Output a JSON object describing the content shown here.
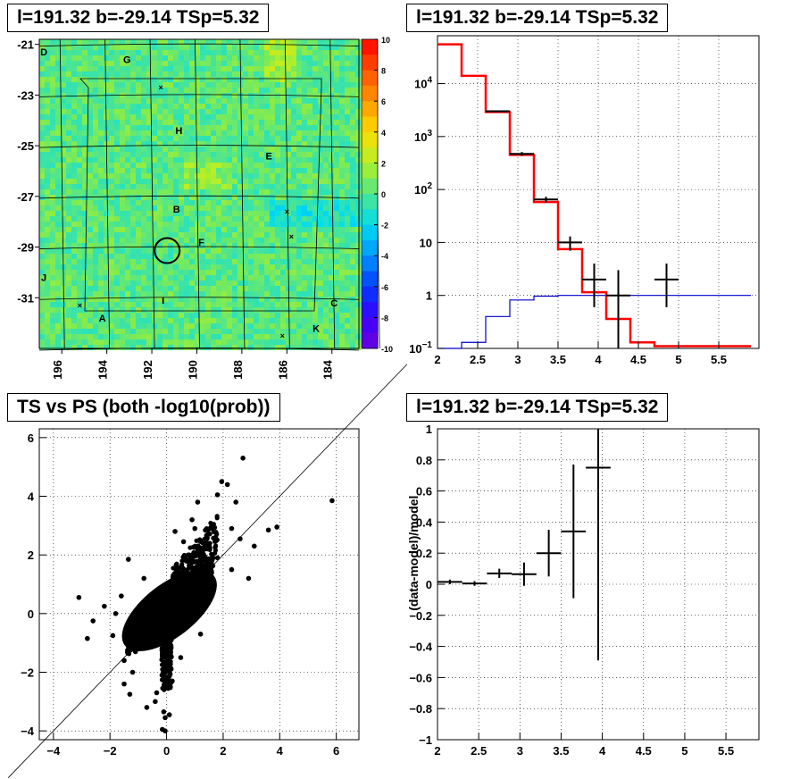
{
  "panels": {
    "map_title": "l=191.32 b=-29.14 TSp=5.32",
    "spectrum_title": "l=191.32 b=-29.14 TSp=5.32",
    "scatter_title": "TS vs PS (both -log10(prob))",
    "residual_title": "l=191.32 b=-29.14 TSp=5.32"
  },
  "chart_data": [
    {
      "type": "heatmap",
      "title": "l=191.32 b=-29.14 TSp=5.32",
      "xlabel": "",
      "ylabel": "",
      "x_ticks": [
        "196",
        "194",
        "192",
        "190",
        "188",
        "186",
        "184"
      ],
      "x_tick_values": [
        196,
        194,
        192,
        190,
        188,
        186,
        184
      ],
      "xlim": [
        197,
        182.8
      ],
      "y_ticks": [
        "-21",
        "-23",
        "-25",
        "-27",
        "-29",
        "-31"
      ],
      "y_tick_values": [
        -21,
        -23,
        -25,
        -27,
        -29,
        -31
      ],
      "ylim": [
        -33,
        -20.8
      ],
      "colorbar_ticks": [
        "10",
        "8",
        "6",
        "4",
        "2",
        "0",
        "-2",
        "-4",
        "-6",
        "-8",
        "-10"
      ],
      "colorbar_range": [
        -10,
        10
      ],
      "dominant_value_range": [
        -1,
        2
      ],
      "source_circle": {
        "l": 191.32,
        "b": -29.14
      },
      "region_labels": [
        {
          "text": "D",
          "l": 196.8,
          "b": -21.3
        },
        {
          "text": "G",
          "l": 193.1,
          "b": -21.6
        },
        {
          "text": "H",
          "l": 190.8,
          "b": -24.4
        },
        {
          "text": "E",
          "l": 186.8,
          "b": -25.4
        },
        {
          "text": "B",
          "l": 190.9,
          "b": -27.5
        },
        {
          "text": "F",
          "l": 189.8,
          "b": -28.8
        },
        {
          "text": "J",
          "l": 196.8,
          "b": -30.2
        },
        {
          "text": "I",
          "l": 191.5,
          "b": -31.1
        },
        {
          "text": "A",
          "l": 194.2,
          "b": -31.8
        },
        {
          "text": "C",
          "l": 183.9,
          "b": -31.2
        },
        {
          "text": "K",
          "l": 184.7,
          "b": -32.2
        }
      ],
      "markers_x": [
        {
          "l": 191.6,
          "b": -22.7
        },
        {
          "l": 186.0,
          "b": -27.6
        },
        {
          "l": 185.8,
          "b": -28.6
        },
        {
          "l": 186.2,
          "b": -32.5
        },
        {
          "l": 195.2,
          "b": -31.3
        }
      ],
      "grid": true
    },
    {
      "type": "line",
      "title": "l=191.32 b=-29.14 TSp=5.32",
      "xlabel": "",
      "ylabel": "",
      "y_scale": "log",
      "xlim": [
        2,
        6
      ],
      "ylim": [
        0.1,
        80000
      ],
      "x_ticks": [
        "2",
        "2.5",
        "3",
        "3.5",
        "4",
        "4.5",
        "5",
        "5.5"
      ],
      "y_ticks": [
        "10^-1",
        "1",
        "10",
        "10^2",
        "10^3",
        "10^4"
      ],
      "bin_edges": [
        2.0,
        2.3,
        2.6,
        2.9,
        3.2,
        3.5,
        3.8,
        4.1,
        4.4,
        4.7,
        5.0,
        5.3,
        5.6,
        5.9
      ],
      "series": [
        {
          "color": "#ff0000",
          "style": "histogram",
          "values": [
            55000,
            14000,
            2900,
            450,
            58,
            7.5,
            1.15,
            0.36,
            0.13,
            0.11,
            0.11,
            0.11,
            0.11
          ]
        },
        {
          "color": "#0000cc",
          "style": "histogram",
          "values": [
            0.1,
            0.13,
            0.4,
            0.82,
            0.97,
            1.0,
            1.0,
            1.0,
            1.0,
            1.0,
            1.0,
            1.0,
            1.0
          ]
        },
        {
          "color": "#000000",
          "style": "errorbar",
          "points": [
            {
              "x": 2.75,
              "y": 3000,
              "xerr": 0.15,
              "ylo": 2890,
              "yhi": 3110
            },
            {
              "x": 3.05,
              "y": 470,
              "xerr": 0.15,
              "ylo": 430,
              "yhi": 510
            },
            {
              "x": 3.35,
              "y": 65,
              "xerr": 0.15,
              "ylo": 57,
              "yhi": 73
            },
            {
              "x": 3.65,
              "y": 10,
              "xerr": 0.15,
              "ylo": 7,
              "yhi": 13
            },
            {
              "x": 3.95,
              "y": 2,
              "xerr": 0.15,
              "ylo": 0.6,
              "yhi": 4
            },
            {
              "x": 4.25,
              "y": 1,
              "xerr": 0.15,
              "ylo": 0.1,
              "yhi": 3
            },
            {
              "x": 4.85,
              "y": 2,
              "xerr": 0.15,
              "ylo": 0.6,
              "yhi": 4
            }
          ]
        }
      ],
      "grid": true
    },
    {
      "type": "scatter",
      "title": "TS vs PS (both -log10(prob))",
      "xlabel": "",
      "ylabel": "",
      "xlim": [
        -4.5,
        6.8
      ],
      "ylim": [
        -4.3,
        6.3
      ],
      "x_ticks": [
        "-4",
        "-2",
        "0",
        "2",
        "4",
        "6"
      ],
      "y_ticks": [
        "-4",
        "-2",
        "0",
        "2",
        "4",
        "6"
      ],
      "diagonal": "y = x",
      "core_cloud": {
        "x_range": [
          -1.4,
          1.6
        ],
        "y_range": [
          -0.9,
          1.7
        ]
      },
      "points": [
        [
          5.85,
          3.85
        ],
        [
          3.9,
          2.95
        ],
        [
          3.6,
          2.85
        ],
        [
          2.7,
          5.3
        ],
        [
          2.15,
          4.4
        ],
        [
          1.95,
          4.5
        ],
        [
          2.45,
          3.8
        ],
        [
          3.1,
          2.3
        ],
        [
          2.6,
          2.55
        ],
        [
          2.3,
          2.9
        ],
        [
          1.8,
          4.05
        ],
        [
          1.1,
          3.8
        ],
        [
          0.9,
          3.2
        ],
        [
          0.3,
          2.8
        ],
        [
          -1.35,
          1.85
        ],
        [
          -3.1,
          0.55
        ],
        [
          -2.2,
          0.25
        ],
        [
          -2.6,
          -0.25
        ],
        [
          -2.8,
          -0.85
        ],
        [
          -1.9,
          -0.75
        ],
        [
          -1.5,
          -1.6
        ],
        [
          -1.2,
          -2.0
        ],
        [
          -1.5,
          -2.4
        ],
        [
          -1.3,
          -2.75
        ],
        [
          -0.7,
          -3.2
        ],
        [
          -0.4,
          -3.0
        ],
        [
          -0.05,
          -3.55
        ],
        [
          -0.1,
          -3.35
        ],
        [
          0.1,
          -3.45
        ],
        [
          -0.15,
          -3.95
        ],
        [
          -0.05,
          -4.0
        ],
        [
          -0.35,
          -2.7
        ],
        [
          0.0,
          -2.5
        ],
        [
          0.2,
          -2.3
        ],
        [
          1.8,
          1.9
        ],
        [
          1.5,
          2.3
        ],
        [
          2.3,
          1.5
        ],
        [
          2.9,
          1.2
        ],
        [
          1.0,
          2.9
        ],
        [
          0.6,
          2.45
        ],
        [
          -0.8,
          1.2
        ],
        [
          -1.1,
          -1.3
        ],
        [
          0.5,
          -1.5
        ],
        [
          1.2,
          -0.7
        ],
        [
          1.6,
          0.6
        ],
        [
          0.8,
          2.0
        ],
        [
          -1.6,
          0.6
        ],
        [
          -1.8,
          0.0
        ]
      ],
      "grid": true
    },
    {
      "type": "scatter",
      "title": "l=191.32 b=-29.14 TSp=5.32",
      "xlabel": "",
      "ylabel": "(data-model)/model",
      "xlim": [
        2,
        5.9
      ],
      "ylim": [
        -1,
        1
      ],
      "x_ticks": [
        "2",
        "2.5",
        "3",
        "3.5",
        "4",
        "4.5",
        "5",
        "5.5"
      ],
      "y_ticks": [
        "-1",
        "-0.8",
        "-0.6",
        "-0.4",
        "-0.2",
        "0",
        "0.2",
        "0.4",
        "0.6",
        "0.8",
        "1"
      ],
      "points": [
        {
          "x": 2.15,
          "y": 0.015,
          "xerr": 0.15,
          "ylo": 0.0,
          "yhi": 0.03
        },
        {
          "x": 2.45,
          "y": 0.005,
          "xerr": 0.15,
          "ylo": -0.01,
          "yhi": 0.02
        },
        {
          "x": 2.75,
          "y": 0.07,
          "xerr": 0.15,
          "ylo": 0.04,
          "yhi": 0.1
        },
        {
          "x": 3.05,
          "y": 0.065,
          "xerr": 0.15,
          "ylo": -0.01,
          "yhi": 0.14
        },
        {
          "x": 3.35,
          "y": 0.2,
          "xerr": 0.15,
          "ylo": 0.05,
          "yhi": 0.35
        },
        {
          "x": 3.65,
          "y": 0.34,
          "xerr": 0.15,
          "ylo": -0.09,
          "yhi": 0.77
        },
        {
          "x": 3.95,
          "y": 0.75,
          "xerr": 0.15,
          "ylo": -0.49,
          "yhi": 1.0
        }
      ],
      "grid": true
    }
  ]
}
